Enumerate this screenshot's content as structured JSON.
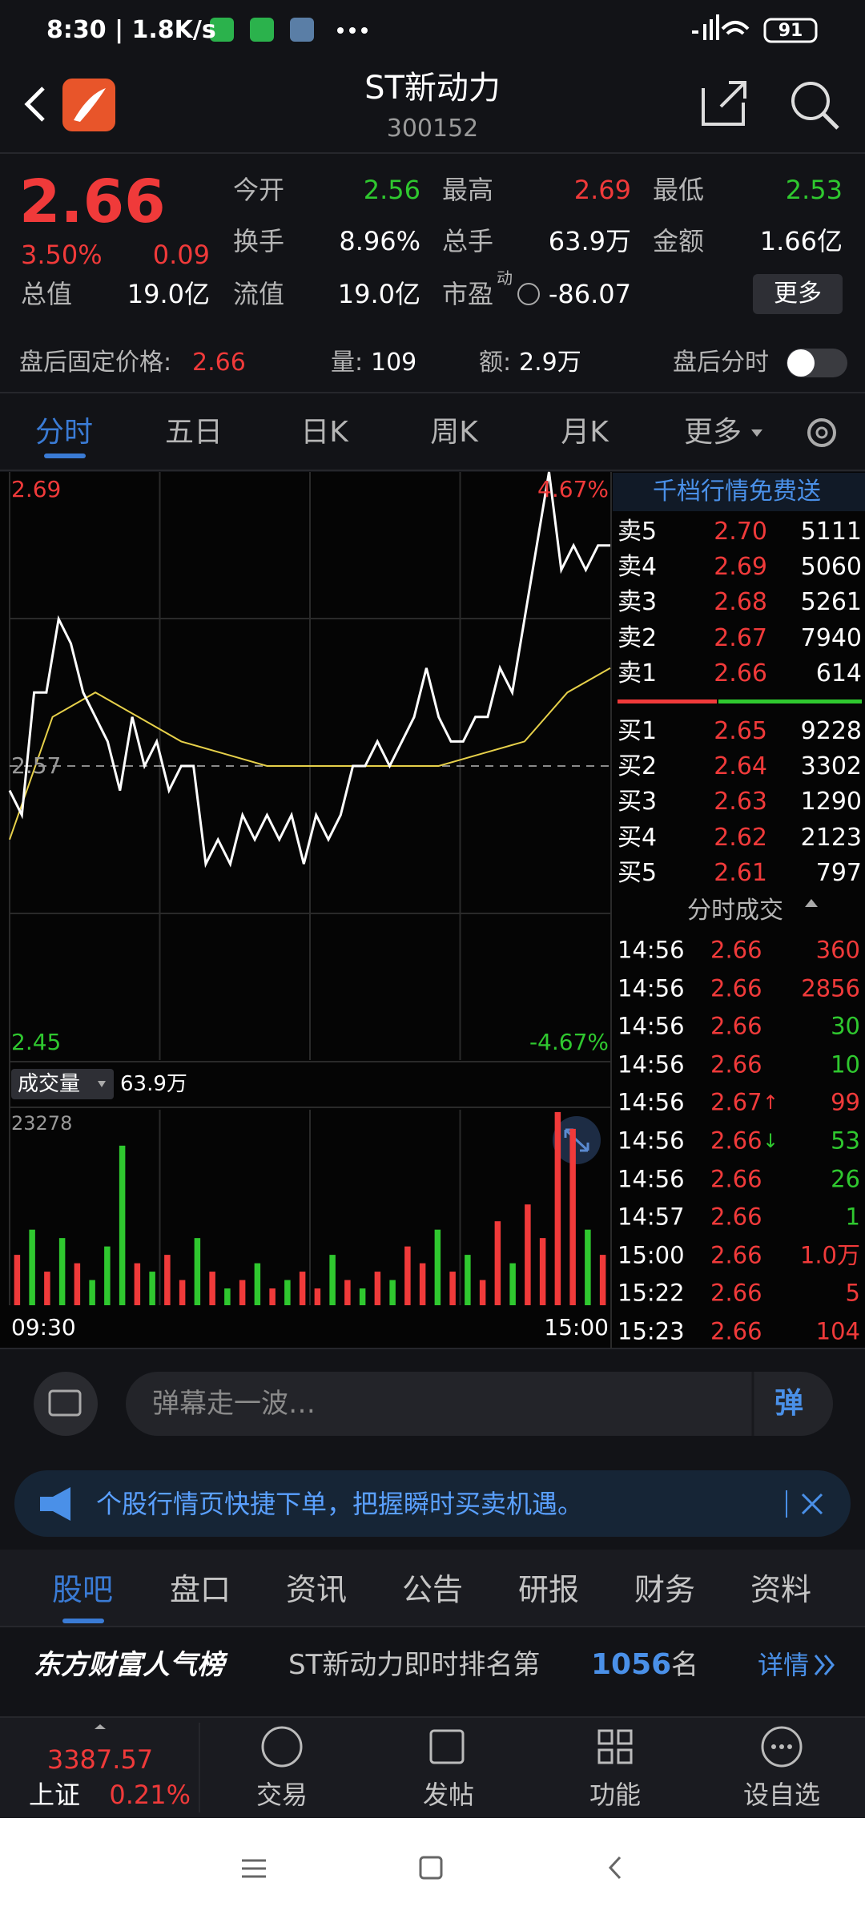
{
  "status_bar": {
    "time": "8:30 | 1.8K/s",
    "battery": "91"
  },
  "header": {
    "title": "ST新动力",
    "code": "300152"
  },
  "quote": {
    "price": "2.66",
    "change_pct": "3.50%",
    "change": "0.09",
    "more": "更多",
    "fields": [
      {
        "label": "今开",
        "value": "2.56",
        "color": "green"
      },
      {
        "label": "最高",
        "value": "2.69",
        "color": "red"
      },
      {
        "label": "最低",
        "value": "2.53",
        "color": "green"
      },
      {
        "label": "换手",
        "value": "8.96%",
        "color": "white"
      },
      {
        "label": "总手",
        "value": "63.9万",
        "color": "white"
      },
      {
        "label": "金额",
        "value": "1.66亿",
        "color": "white"
      },
      {
        "label": "总值",
        "value": "19.0亿",
        "color": "white"
      },
      {
        "label": "流值",
        "value": "19.0亿",
        "color": "white"
      },
      {
        "label": "市盈",
        "value": "-86.07",
        "color": "white",
        "note": "动"
      }
    ]
  },
  "after_hours": {
    "price_label": "盘后固定价格:",
    "price": "2.66",
    "volume_label": "量:",
    "volume": "109",
    "amount_label": "额:",
    "amount": "2.9万",
    "toggle_label": "盘后分时"
  },
  "tabs": [
    "分时",
    "五日",
    "日K",
    "周K",
    "月K",
    "更多"
  ],
  "chart_data": [
    {
      "type": "line",
      "ylim": [
        2.45,
        2.69
      ],
      "yticks": [
        2.45,
        2.57,
        2.69
      ],
      "ytick_colors": [
        "#2fc82f",
        "#9a9a9a",
        "#f03a3a"
      ],
      "y2lim": [
        -4.67,
        4.67
      ],
      "y2ticks": [
        {
          "value": -4.67,
          "label": "-4.67%"
        },
        {
          "value": 4.67,
          "label": "4.67%"
        }
      ],
      "y2tick_colors": [
        "#2fc82f",
        "#f03a3a"
      ],
      "series": [
        {
          "color": "#ffffff",
          "values": [
            2.56,
            2.55,
            2.6,
            2.6,
            2.63,
            2.62,
            2.6,
            2.59,
            2.58,
            2.56,
            2.59,
            2.57,
            2.58,
            2.56,
            2.57,
            2.57,
            2.53,
            2.54,
            2.53,
            2.55,
            2.54,
            2.55,
            2.54,
            2.55,
            2.53,
            2.55,
            2.54,
            2.55,
            2.57,
            2.57,
            2.58,
            2.57,
            2.58,
            2.59,
            2.61,
            2.59,
            2.58,
            2.58,
            2.59,
            2.59,
            2.61,
            2.6,
            2.63,
            2.66,
            2.69,
            2.65,
            2.66,
            2.65,
            2.66,
            2.66
          ]
        },
        {
          "color": "#e6d04a",
          "values": [
            2.54,
            2.59,
            2.6,
            2.59,
            2.58,
            2.575,
            2.57,
            2.57,
            2.57,
            2.57,
            2.57,
            2.575,
            2.58,
            2.6,
            2.61
          ]
        }
      ]
    },
    {
      "type": "bar",
      "label": "成交量",
      "total": "63.9万",
      "ylim": [
        0,
        23278
      ],
      "yticks": [
        23278
      ],
      "x_labels": [
        "09:30",
        "15:00"
      ],
      "values": [
        6000,
        9000,
        4000,
        8000,
        5000,
        3000,
        7000,
        19000,
        5000,
        4000,
        6000,
        3000,
        8000,
        4000,
        2000,
        3000,
        5000,
        2000,
        3000,
        4000,
        2000,
        6000,
        3000,
        2000,
        4000,
        3000,
        7000,
        5000,
        9000,
        4000,
        6000,
        3000,
        10000,
        5000,
        12000,
        8000,
        23000,
        21000,
        9000,
        6000
      ],
      "colors": [
        "#f03a3a",
        "#2fc82f",
        "#f03a3a",
        "#2fc82f",
        "#f03a3a",
        "#2fc82f",
        "#2fc82f",
        "#2fc82f",
        "#f03a3a",
        "#2fc82f",
        "#f03a3a",
        "#f03a3a",
        "#2fc82f",
        "#f03a3a",
        "#2fc82f",
        "#f03a3a",
        "#2fc82f",
        "#f03a3a",
        "#2fc82f",
        "#f03a3a",
        "#f03a3a",
        "#2fc82f",
        "#f03a3a",
        "#2fc82f",
        "#f03a3a",
        "#2fc82f",
        "#f03a3a",
        "#f03a3a",
        "#2fc82f",
        "#f03a3a",
        "#2fc82f",
        "#f03a3a",
        "#f03a3a",
        "#2fc82f",
        "#f03a3a",
        "#f03a3a",
        "#f03a3a",
        "#f03a3a",
        "#2fc82f",
        "#f03a3a"
      ]
    }
  ],
  "order_book": {
    "promo": "千档行情免费送",
    "asks": [
      {
        "label": "卖5",
        "price": "2.70",
        "volume": "5111"
      },
      {
        "label": "卖4",
        "price": "2.69",
        "volume": "5060"
      },
      {
        "label": "卖3",
        "price": "2.68",
        "volume": "5261"
      },
      {
        "label": "卖2",
        "price": "2.67",
        "volume": "7940"
      },
      {
        "label": "卖1",
        "price": "2.66",
        "volume": "614"
      }
    ],
    "bids": [
      {
        "label": "买1",
        "price": "2.65",
        "volume": "9228"
      },
      {
        "label": "买2",
        "price": "2.64",
        "volume": "3302"
      },
      {
        "label": "买3",
        "price": "2.63",
        "volume": "1290"
      },
      {
        "label": "买4",
        "price": "2.62",
        "volume": "2123"
      },
      {
        "label": "买5",
        "price": "2.61",
        "volume": "797"
      }
    ]
  },
  "trades": {
    "title": "分时成交",
    "rows": [
      {
        "time": "14:56",
        "price": "2.66",
        "volume": "360",
        "side": "red"
      },
      {
        "time": "14:56",
        "price": "2.66",
        "volume": "2856",
        "side": "red"
      },
      {
        "time": "14:56",
        "price": "2.66",
        "volume": "30",
        "side": "green"
      },
      {
        "time": "14:56",
        "price": "2.66",
        "volume": "10",
        "side": "green"
      },
      {
        "time": "14:56",
        "price": "2.67",
        "arrow": "↑",
        "volume": "99",
        "side": "red"
      },
      {
        "time": "14:56",
        "price": "2.66",
        "arrow": "↓",
        "volume": "53",
        "side": "green"
      },
      {
        "time": "14:56",
        "price": "2.66",
        "volume": "26",
        "side": "green"
      },
      {
        "time": "14:57",
        "price": "2.66",
        "volume": "1",
        "side": "green"
      },
      {
        "time": "15:00",
        "price": "2.66",
        "volume": "1.0万",
        "side": "red"
      },
      {
        "time": "15:22",
        "price": "2.66",
        "volume": "5",
        "side": "red"
      },
      {
        "time": "15:23",
        "price": "2.66",
        "volume": "104",
        "side": "red"
      }
    ]
  },
  "comment": {
    "placeholder": "弹幕走一波…",
    "button": "弹"
  },
  "banner": {
    "text": "个股行情页快捷下单，把握瞬时买卖机遇。"
  },
  "section_tabs": [
    "股吧",
    "盘口",
    "资讯",
    "公告",
    "研报",
    "财务",
    "资料"
  ],
  "popularity": {
    "brand": "东方财富人气榜",
    "text": "ST新动力即时排名第",
    "rank": "1056",
    "suffix": "名",
    "link": "详情"
  },
  "bottom_nav": {
    "index_value": "3387.57",
    "index_name": "上证",
    "index_change": "0.21%",
    "items": [
      "交易",
      "发帖",
      "功能",
      "设自选"
    ]
  }
}
